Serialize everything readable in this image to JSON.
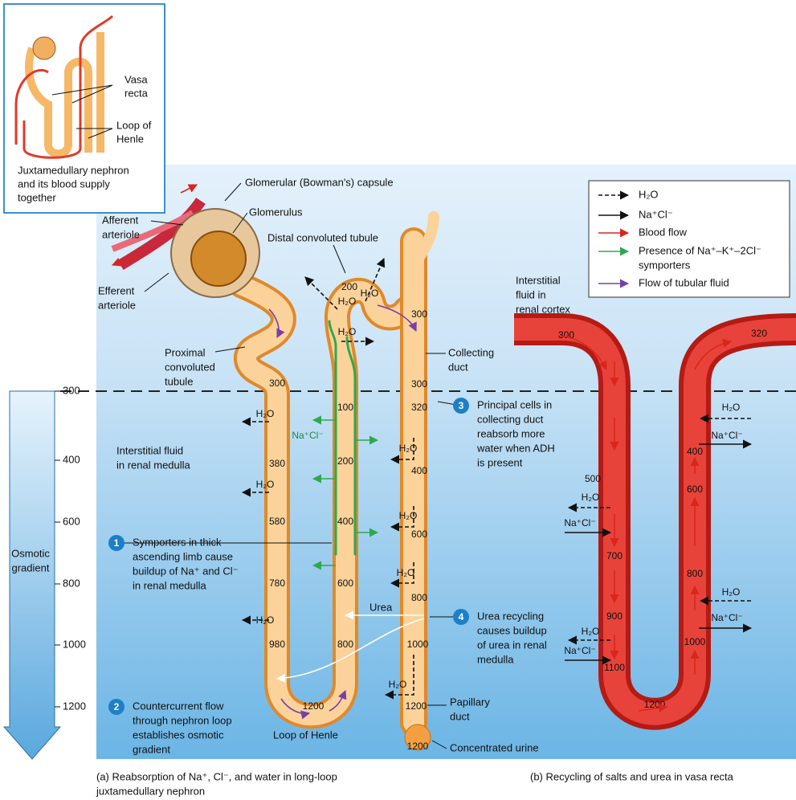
{
  "inset": {
    "vasa_recta": [
      "Vasa",
      "recta"
    ],
    "loop_of_henle": [
      "Loop of",
      "Henle"
    ],
    "caption": [
      "Juxtamedullary nephron",
      "and its blood supply",
      "together"
    ]
  },
  "labels": {
    "capsule": [
      "Glomerular (Bowman's) capsule"
    ],
    "glomerulus": [
      "Glomerulus"
    ],
    "afferent": [
      "Afferent",
      "arteriole"
    ],
    "efferent": [
      "Efferent",
      "arteriole"
    ],
    "distal": [
      "Distal convoluted tubule"
    ],
    "proximal": [
      "Proximal",
      "convoluted",
      "tubule"
    ],
    "collecting": [
      "Collecting",
      "duct"
    ],
    "cortex_fluid": [
      "Interstitial",
      "fluid in",
      "renal cortex"
    ],
    "medulla_fluid": [
      "Interstitial fluid",
      "in renal medulla"
    ],
    "loop": [
      "Loop of Henle"
    ],
    "papillary": [
      "Papillary",
      "duct"
    ],
    "urine": [
      "Concentrated urine"
    ],
    "urea": [
      "Urea"
    ]
  },
  "legend": {
    "water": "H₂O",
    "salt": "Na⁺Cl⁻",
    "blood": "Blood flow",
    "symporters": [
      "Presence of Na⁺–K⁺–2Cl⁻",
      "symporters"
    ],
    "flow": "Flow of tubular fluid"
  },
  "steps": [
    {
      "number": "1",
      "lines": [
        "Symporters in thick",
        "ascending limb cause",
        "buildup of Na⁺ and Cl⁻",
        "in renal medulla"
      ]
    },
    {
      "number": "2",
      "lines": [
        "Countercurrent flow",
        "through nephron loop",
        "establishes osmotic",
        "gradient"
      ]
    },
    {
      "number": "3",
      "lines": [
        "Principal cells in",
        "collecting duct",
        "reabsorb more",
        "water when ADH",
        "is present"
      ]
    },
    {
      "number": "4",
      "lines": [
        "Urea recycling",
        "causes buildup",
        "of urea in renal",
        "medulla"
      ]
    }
  ],
  "scale": {
    "title": [
      "Osmotic",
      "gradient"
    ],
    "ticks": [
      300,
      400,
      600,
      800,
      1000,
      1200
    ]
  },
  "captions": {
    "a": [
      "(a) Reabsorption of Na⁺, Cl⁻, and water in long-loop",
      "juxtamedullary nephron"
    ],
    "b": [
      "(b) Recycling of salts and urea in vasa recta"
    ]
  },
  "osmolarity": {
    "descending": [
      300,
      380,
      580,
      780,
      980
    ],
    "bottom": [
      1200
    ],
    "ascending": [
      100,
      200,
      400,
      600,
      800
    ],
    "distal": [
      200
    ],
    "collecting": [
      300,
      300,
      320,
      400,
      600,
      800,
      1000,
      1200
    ],
    "urine": [
      1200
    ],
    "vasa_recta": [
      300,
      500,
      700,
      900,
      1100,
      1200,
      1000,
      800,
      600,
      400,
      320
    ]
  },
  "water_labels": [
    "H₂O",
    "H₂O",
    "H₂O",
    "H₂O",
    "H₂O",
    "H₂O",
    "H₂O",
    "H₂O",
    "H₂O",
    "H₂O",
    "H₂O",
    "H₂O",
    "H₂O",
    "H₂O"
  ],
  "salt_labels": [
    "Na⁺Cl⁻",
    "Na⁺Cl⁻",
    "Na⁺Cl⁻",
    "Na⁺Cl⁻",
    "Na⁺Cl⁻"
  ]
}
